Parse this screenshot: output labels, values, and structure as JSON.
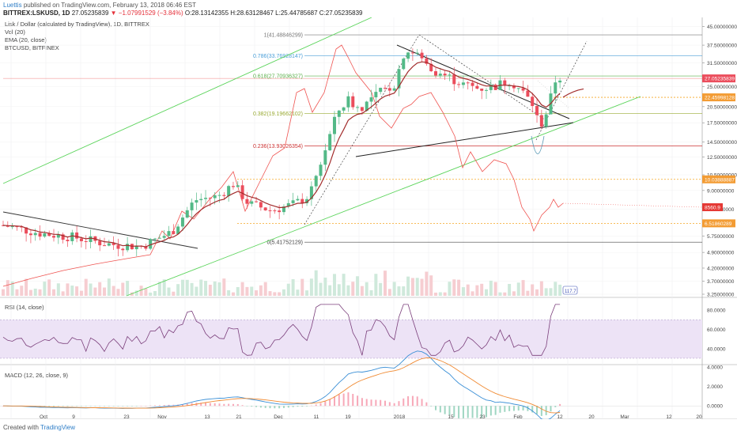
{
  "header": {
    "author": "Luettis",
    "published": "published on TradingView.com, February 13, 2018 06:46 EST",
    "symbol": "BITTREX:LSKUSD, 1D",
    "last": "27.05235839",
    "change": "▼ −1.07991529 (−3.84%)",
    "ohlc": "O:28.13142355 H:28.63128467 L:25.44785687 C:27.05235839"
  },
  "legend": {
    "title": "Lisk / Dollar (calculated by TradingView), 1D, BITTREX",
    "vol": "Vol (20)",
    "ema": "EMA (20, close)",
    "btc": "BTCUSD, BITFINEX",
    "rsi": "RSI (14, close)",
    "macd": "MACD (12, 26, close, 9)"
  },
  "footer": {
    "created": "Created with",
    "brand": "TradingView"
  },
  "colors": {
    "up": "#53b987",
    "down": "#eb4d5c",
    "ema": "#a22c2c",
    "btc": "#ef5350",
    "channel": "#5bd45b",
    "rsi": "#7b3f7b",
    "rsi_band": "#ede3f6",
    "macd": "#3a8fd6",
    "signal": "#f08a32"
  },
  "chart_data": {
    "type": "candlestick",
    "symbol": "LSKUSD",
    "interval": "1D",
    "price_axis": {
      "ticks": [
        "45.00000000",
        "37.50000000",
        "31.50000000",
        "25.00000000",
        "20.50000000",
        "17.50000000",
        "14.50000000",
        "12.50000000",
        "10.50000000",
        "9.00000000",
        "7.50000000",
        "5.75000000",
        "4.90000000",
        "4.20000000",
        "3.70000000",
        "3.25000000"
      ],
      "scale": "log"
    },
    "time_axis": {
      "labels": [
        "Oct",
        "9",
        "23",
        "Nov",
        "13",
        "21",
        "Dec",
        "11",
        "19",
        "2018",
        "15",
        "23",
        "Feb",
        "12",
        "20",
        "Mar",
        "12",
        "20"
      ]
    },
    "price_labels": {
      "last": "27.05235839",
      "ema": "22.45998128",
      "btc": "8560.9",
      "level_high": "10.03888887",
      "level_low": "6.51860289"
    },
    "fibonacci": [
      {
        "ratio": "1",
        "price": "41.48846299"
      },
      {
        "ratio": "0.786",
        "price": "33.76928147"
      },
      {
        "ratio": "0.618",
        "price": "27.70936327"
      },
      {
        "ratio": "0.382",
        "price": "19.19662102"
      },
      {
        "ratio": "0.236",
        "price": "13.93026354"
      },
      {
        "ratio": "0",
        "price": "5.41752129"
      }
    ],
    "pattern_label": "117.7",
    "rsi": {
      "ticks": [
        "80.0000",
        "60.0000",
        "40.0000"
      ]
    },
    "macd": {
      "ticks": [
        "4.0000",
        "2.0000",
        "0.0000"
      ]
    }
  }
}
